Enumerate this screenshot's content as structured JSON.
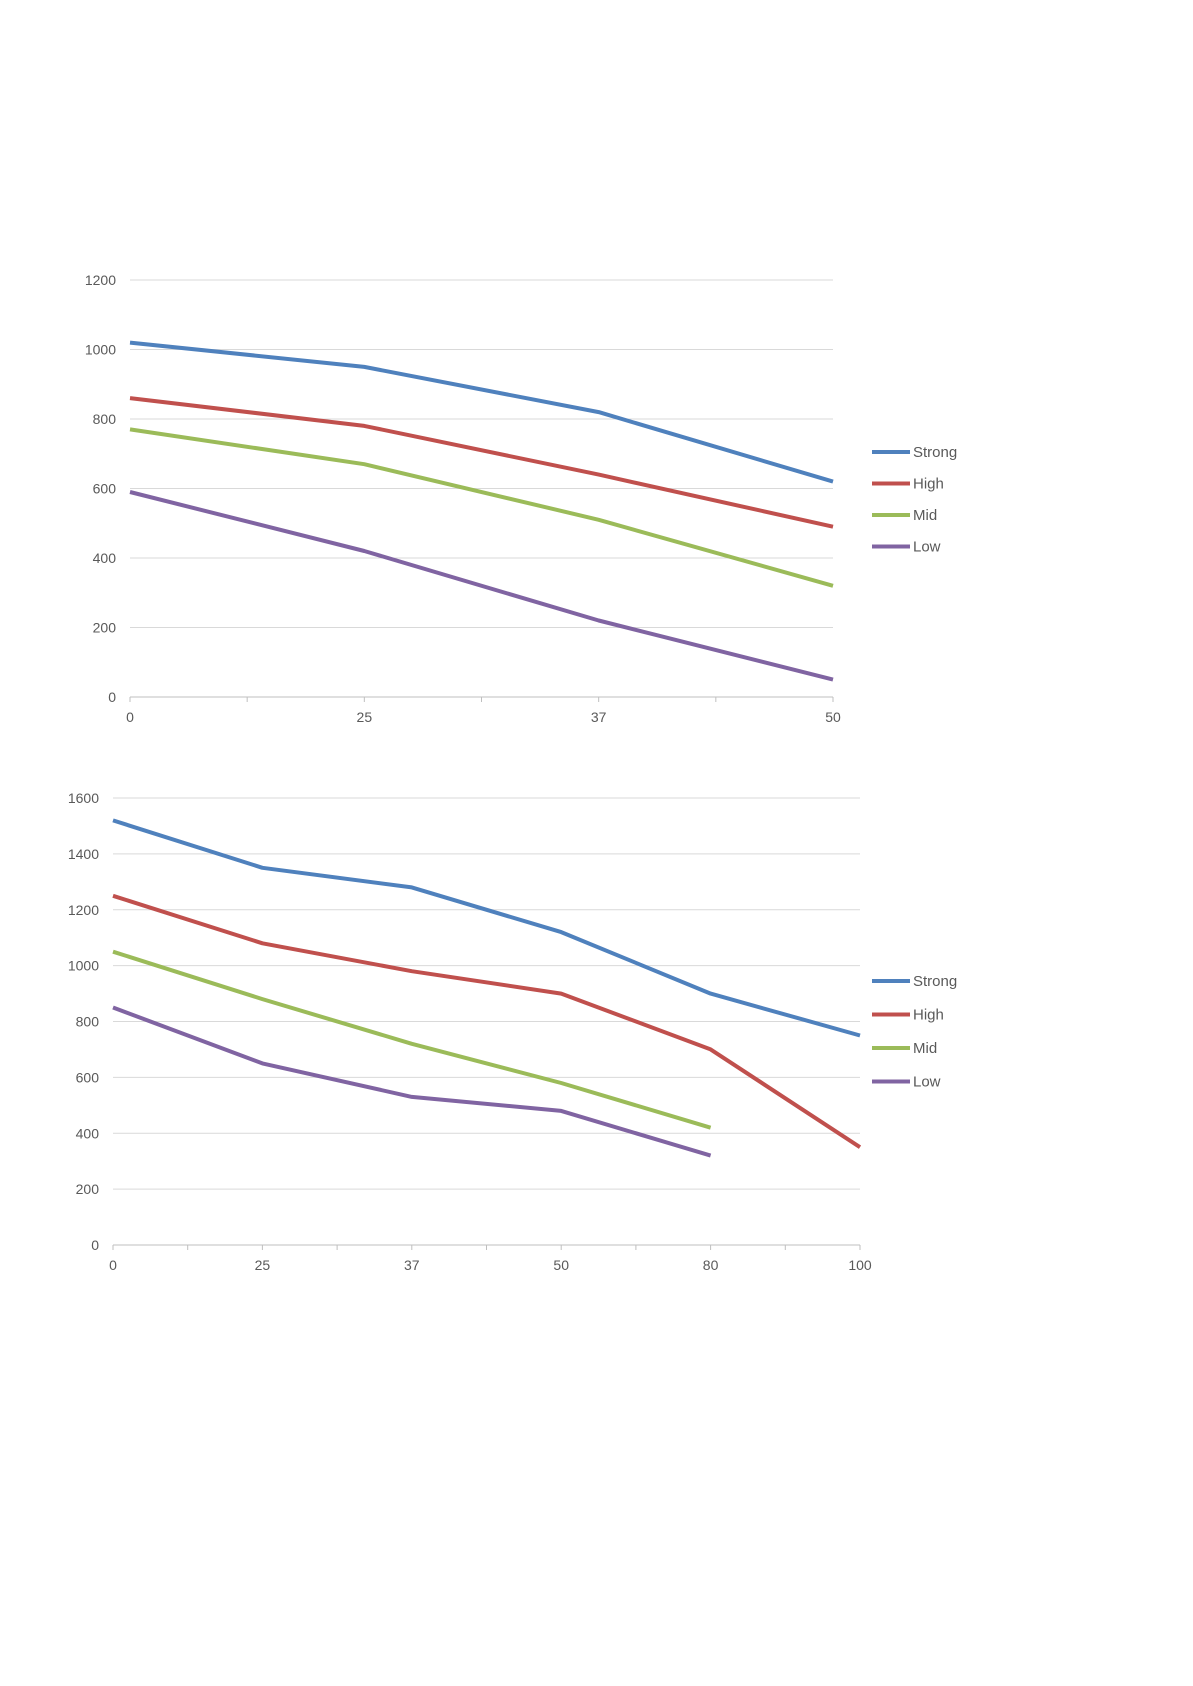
{
  "chart_data": [
    {
      "type": "line",
      "x": [
        "0",
        "25",
        "37",
        "50"
      ],
      "ylim": [
        0,
        1200
      ],
      "yticks": [
        0,
        200,
        400,
        600,
        800,
        1000,
        1200
      ],
      "grid": true,
      "legend": "right",
      "series": [
        {
          "name": "Strong",
          "color": "#4F81BD",
          "values": [
            1020,
            950,
            820,
            620
          ]
        },
        {
          "name": "High",
          "color": "#C0504D",
          "values": [
            860,
            780,
            640,
            490
          ]
        },
        {
          "name": "Mid",
          "color": "#9BBB59",
          "values": [
            770,
            670,
            510,
            320
          ]
        },
        {
          "name": "Low",
          "color": "#8064A2",
          "values": [
            590,
            420,
            220,
            50
          ]
        }
      ]
    },
    {
      "type": "line",
      "x": [
        "0",
        "25",
        "37",
        "50",
        "80",
        "100"
      ],
      "ylim": [
        0,
        1600
      ],
      "yticks": [
        0,
        200,
        400,
        600,
        800,
        1000,
        1200,
        1400,
        1600
      ],
      "grid": true,
      "legend": "right",
      "series": [
        {
          "name": "Strong",
          "color": "#4F81BD",
          "values": [
            1520,
            1350,
            1280,
            1120,
            900,
            750
          ]
        },
        {
          "name": "High",
          "color": "#C0504D",
          "values": [
            1250,
            1080,
            980,
            900,
            700,
            350
          ]
        },
        {
          "name": "Mid",
          "color": "#9BBB59",
          "values": [
            1050,
            880,
            720,
            580,
            420,
            null
          ]
        },
        {
          "name": "Low",
          "color": "#8064A2",
          "values": [
            850,
            650,
            530,
            480,
            320,
            null
          ]
        }
      ]
    }
  ]
}
